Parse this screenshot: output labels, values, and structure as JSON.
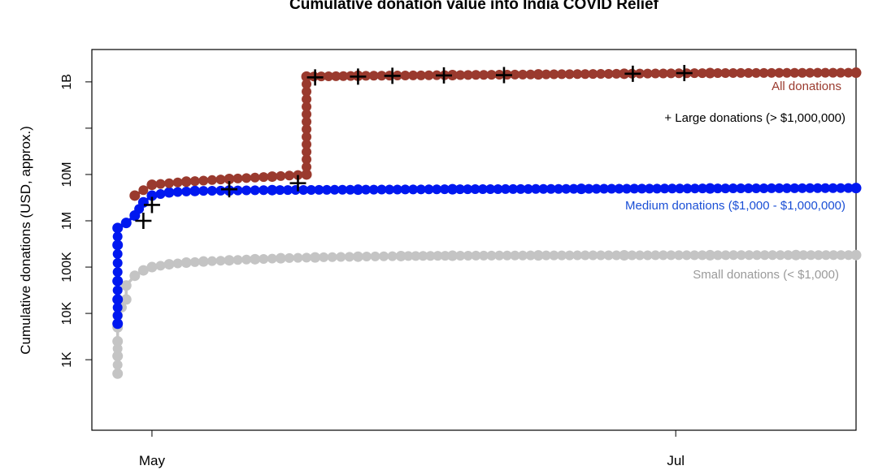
{
  "chart_data": {
    "type": "line",
    "title": "Cumulative donation value into India COVID Relief",
    "ylabel": "Cumulative donations (USD, approx.)",
    "xlabel": "",
    "y_scale": "log10",
    "ylim": [
      30,
      5000000000
    ],
    "xlim": [
      "2021-04-24",
      "2021-07-22"
    ],
    "x_ticks": [
      {
        "date": "2021-05-01",
        "label": "May"
      },
      {
        "date": "2021-07-01",
        "label": "Jul"
      }
    ],
    "y_ticks": [
      {
        "value": 1000,
        "label": "1K"
      },
      {
        "value": 10000,
        "label": "10K"
      },
      {
        "value": 100000,
        "label": "100K"
      },
      {
        "value": 1000000,
        "label": "1M"
      },
      {
        "value": 10000000,
        "label": "10M"
      },
      {
        "value": 100000000,
        "label": ""
      },
      {
        "value": 1000000000,
        "label": "1B"
      }
    ],
    "grid": false,
    "legend_placement": "right, inline next to each series",
    "series": [
      {
        "name": "Small donations (< $1,000)",
        "color": "#c4c4c4",
        "points": [
          [
            "2021-04-27",
            500
          ],
          [
            "2021-04-27",
            1200
          ],
          [
            "2021-04-27",
            2500
          ],
          [
            "2021-04-27",
            5000
          ],
          [
            "2021-04-27",
            9000
          ],
          [
            "2021-04-28",
            20000
          ],
          [
            "2021-04-28",
            40000
          ],
          [
            "2021-04-29",
            65000
          ],
          [
            "2021-04-30",
            85000
          ],
          [
            "2021-05-01",
            100000
          ],
          [
            "2021-05-03",
            115000
          ],
          [
            "2021-05-05",
            125000
          ],
          [
            "2021-05-07",
            132000
          ],
          [
            "2021-05-10",
            140000
          ],
          [
            "2021-05-13",
            148000
          ],
          [
            "2021-05-16",
            155000
          ],
          [
            "2021-05-20",
            162000
          ],
          [
            "2021-05-25",
            168000
          ],
          [
            "2021-05-30",
            173000
          ],
          [
            "2021-06-05",
            176000
          ],
          [
            "2021-06-15",
            179000
          ],
          [
            "2021-06-25",
            180000
          ],
          [
            "2021-07-05",
            181000
          ],
          [
            "2021-07-15",
            182000
          ],
          [
            "2021-07-22",
            182000
          ]
        ]
      },
      {
        "name": "Medium donations ($1,000 - $1,000,000)",
        "color": "#0018f0",
        "points": [
          [
            "2021-04-27",
            6000
          ],
          [
            "2021-04-27",
            20000
          ],
          [
            "2021-04-27",
            50000
          ],
          [
            "2021-04-27",
            300000
          ],
          [
            "2021-04-27",
            700000
          ],
          [
            "2021-04-28",
            900000
          ],
          [
            "2021-04-29",
            1300000
          ],
          [
            "2021-04-30",
            2500000
          ],
          [
            "2021-05-01",
            3500000
          ],
          [
            "2021-05-03",
            4100000
          ],
          [
            "2021-05-06",
            4400000
          ],
          [
            "2021-05-10",
            4500000
          ],
          [
            "2021-05-15",
            4600000
          ],
          [
            "2021-05-25",
            4700000
          ],
          [
            "2021-06-05",
            4800000
          ],
          [
            "2021-06-20",
            4900000
          ],
          [
            "2021-07-05",
            5000000
          ],
          [
            "2021-07-22",
            5100000
          ]
        ]
      },
      {
        "name": "All donations",
        "color": "#9a3a2e",
        "points": [
          [
            "2021-04-29",
            3500000
          ],
          [
            "2021-05-01",
            6000000
          ],
          [
            "2021-05-05",
            7000000
          ],
          [
            "2021-05-10",
            8000000
          ],
          [
            "2021-05-15",
            9000000
          ],
          [
            "2021-05-19",
            10000000
          ],
          [
            "2021-05-19",
            1300000000
          ],
          [
            "2021-05-25",
            1350000000
          ],
          [
            "2021-06-05",
            1400000000
          ],
          [
            "2021-06-15",
            1450000000
          ],
          [
            "2021-06-25",
            1500000000
          ],
          [
            "2021-07-05",
            1550000000
          ],
          [
            "2021-07-22",
            1580000000
          ]
        ]
      },
      {
        "name": "Large donations (> $1,000,000)",
        "color": "#000000",
        "marker": "+",
        "points": [
          [
            "2021-04-30",
            1000000
          ],
          [
            "2021-05-01",
            2200000
          ],
          [
            "2021-05-10",
            4800000
          ],
          [
            "2021-05-18",
            6500000
          ],
          [
            "2021-05-20",
            1250000000
          ],
          [
            "2021-05-25",
            1300000000
          ],
          [
            "2021-05-29",
            1350000000
          ],
          [
            "2021-06-04",
            1380000000
          ],
          [
            "2021-06-11",
            1400000000
          ],
          [
            "2021-06-26",
            1500000000
          ],
          [
            "2021-07-02",
            1550000000
          ]
        ]
      }
    ]
  }
}
